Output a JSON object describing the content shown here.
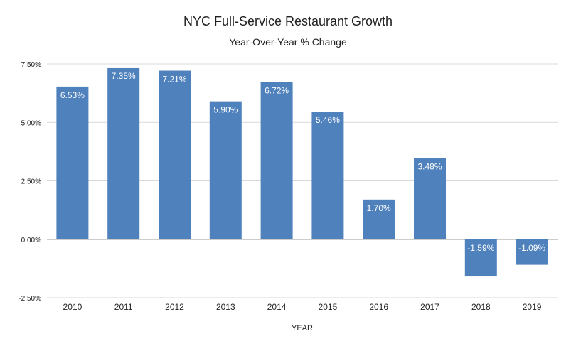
{
  "chart_data": {
    "type": "bar",
    "title": "NYC Full-Service Restaurant Growth",
    "subtitle": "Year-Over-Year % Change",
    "xlabel": "YEAR",
    "ylabel": "",
    "categories": [
      "2010",
      "2011",
      "2012",
      "2013",
      "2014",
      "2015",
      "2016",
      "2017",
      "2018",
      "2019"
    ],
    "values": [
      6.53,
      7.35,
      7.21,
      5.9,
      6.72,
      5.46,
      1.7,
      3.48,
      -1.59,
      -1.09
    ],
    "data_labels": [
      "6.53%",
      "7.35%",
      "7.21%",
      "5.90%",
      "6.72%",
      "5.46%",
      "1.70%",
      "3.48%",
      "-1.59%",
      "-1.09%"
    ],
    "y_ticks": [
      -2.5,
      0,
      2.5,
      5,
      7.5
    ],
    "y_tick_labels": [
      "-2.50%",
      "0.00%",
      "2.50%",
      "5.00%",
      "7.50%"
    ],
    "ylim": [
      -2.5,
      7.5
    ],
    "grid": true,
    "legend": "none",
    "bar_color": "#4f81bd"
  }
}
